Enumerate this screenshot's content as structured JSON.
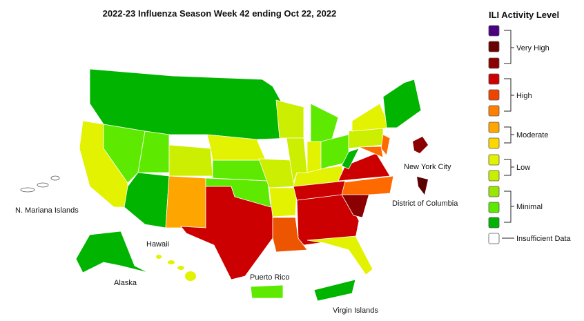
{
  "title": "2022-23 Influenza Season Week 42 ending Oct 22, 2022",
  "legend": {
    "title": "ILI Activity Level",
    "levels": [
      "Very High",
      "High",
      "Moderate",
      "Low",
      "Minimal",
      "Insufficient Data"
    ]
  },
  "map_labels": [
    "N. Mariana Islands",
    "Hawaii",
    "Alaska",
    "Puerto Rico",
    "Virgin Islands",
    "New York City",
    "District of Columbia"
  ]
}
